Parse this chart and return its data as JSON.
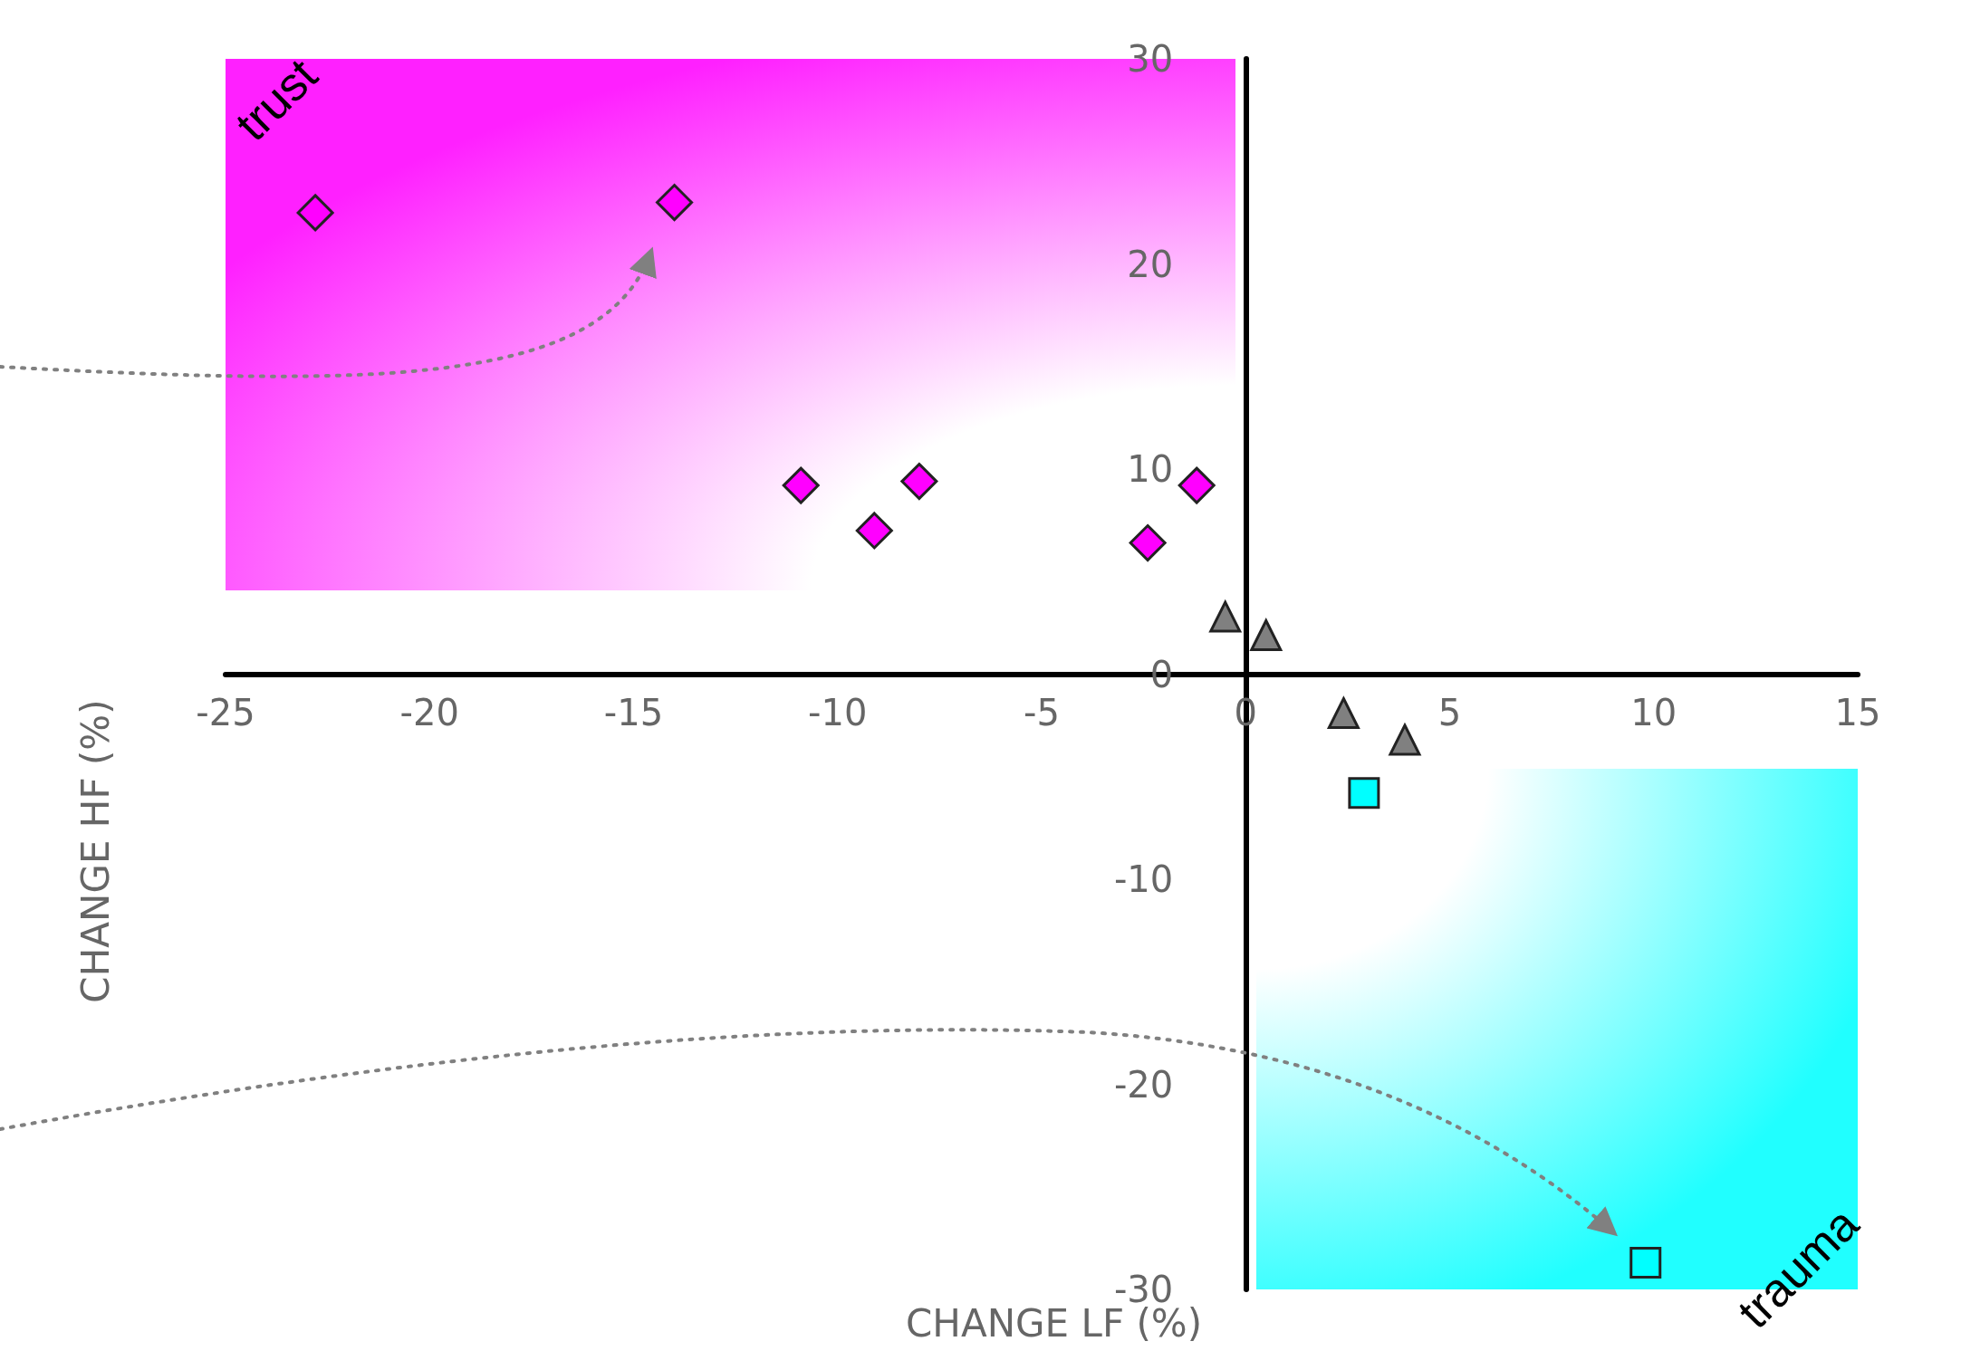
{
  "chart_data": {
    "type": "scatter",
    "xlabel": "CHANGE LF (%)",
    "ylabel": "CHANGE HF (%)",
    "annotations": [
      "trust",
      "trauma"
    ],
    "xlim": [
      -25,
      15
    ],
    "xticks": [
      -25,
      -20,
      -15,
      -10,
      -5,
      0,
      5,
      10,
      15
    ],
    "ylim": [
      -30,
      30
    ],
    "yticks": [
      -30,
      -20,
      -10,
      0,
      10,
      20,
      30
    ],
    "series": [
      {
        "marker": "diamond",
        "color": "#ff00ff",
        "x": [
          -22.8,
          -14.0,
          -10.9,
          -9.1,
          -8.0,
          -2.4,
          -1.2
        ],
        "values": [
          22.5,
          23.0,
          9.2,
          7.0,
          9.4,
          6.4,
          9.2
        ]
      },
      {
        "marker": "triangle",
        "color": "#808080",
        "x": [
          -0.5,
          0.5,
          2.4,
          3.9
        ],
        "values": [
          2.8,
          1.9,
          -1.9,
          -3.2
        ]
      },
      {
        "marker": "square",
        "color": "#00ffff",
        "x": [
          2.9,
          9.8
        ],
        "values": [
          -5.8,
          -28.7
        ]
      }
    ]
  }
}
